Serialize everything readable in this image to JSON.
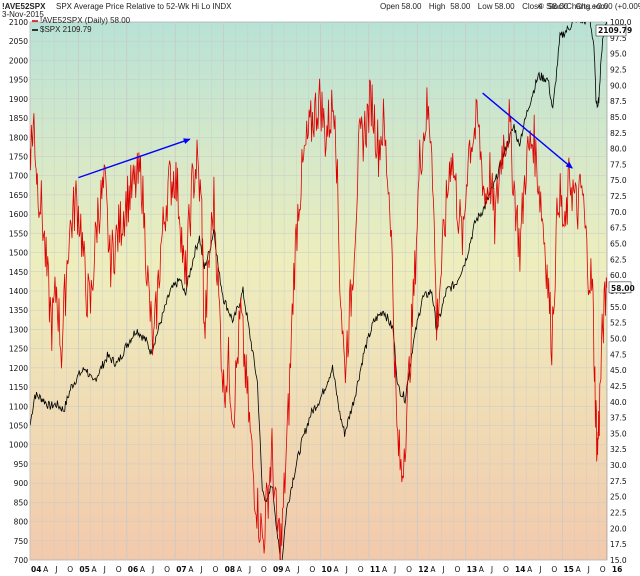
{
  "header": {
    "symbol": "!AVE52SPX",
    "description": "SPX Average Price Relative to 52-Wk Hi Lo INDX",
    "date": "3-Nov-2015",
    "ohlc": [
      {
        "label": "Open",
        "value": "58.00"
      },
      {
        "label": "High",
        "value": "58.00"
      },
      {
        "label": "Low",
        "value": "58.00"
      },
      {
        "label": "Close",
        "value": "58.00"
      },
      {
        "label": "Chg",
        "value": "+0.00 (+0.00%)"
      }
    ],
    "watermark": "© StockCharts.com"
  },
  "chart_data": {
    "type": "line",
    "legend": [
      {
        "label": "!AVE52SPX (Daily) 58.00",
        "color": "#dd0000"
      },
      {
        "label": "$SPX 2109.79",
        "color": "#000000"
      }
    ],
    "x_range": [
      2004.0,
      2015.92
    ],
    "x_ticks": [
      {
        "label": "04",
        "year": true,
        "x": 2004.0
      },
      {
        "label": "A",
        "x": 2004.25
      },
      {
        "label": "J",
        "x": 2004.5
      },
      {
        "label": "O",
        "x": 2004.75
      },
      {
        "label": "05",
        "year": true,
        "x": 2005.0
      },
      {
        "label": "A",
        "x": 2005.25
      },
      {
        "label": "J",
        "x": 2005.5
      },
      {
        "label": "O",
        "x": 2005.75
      },
      {
        "label": "06",
        "year": true,
        "x": 2006.0
      },
      {
        "label": "A",
        "x": 2006.25
      },
      {
        "label": "J",
        "x": 2006.5
      },
      {
        "label": "O",
        "x": 2006.75
      },
      {
        "label": "07",
        "year": true,
        "x": 2007.0
      },
      {
        "label": "A",
        "x": 2007.25
      },
      {
        "label": "J",
        "x": 2007.5
      },
      {
        "label": "O",
        "x": 2007.75
      },
      {
        "label": "08",
        "year": true,
        "x": 2008.0
      },
      {
        "label": "A",
        "x": 2008.25
      },
      {
        "label": "J",
        "x": 2008.5
      },
      {
        "label": "O",
        "x": 2008.75
      },
      {
        "label": "09",
        "year": true,
        "x": 2009.0
      },
      {
        "label": "A",
        "x": 2009.25
      },
      {
        "label": "J",
        "x": 2009.5
      },
      {
        "label": "O",
        "x": 2009.75
      },
      {
        "label": "10",
        "year": true,
        "x": 2010.0
      },
      {
        "label": "A",
        "x": 2010.25
      },
      {
        "label": "J",
        "x": 2010.5
      },
      {
        "label": "O",
        "x": 2010.75
      },
      {
        "label": "11",
        "year": true,
        "x": 2011.0
      },
      {
        "label": "A",
        "x": 2011.25
      },
      {
        "label": "J",
        "x": 2011.5
      },
      {
        "label": "O",
        "x": 2011.75
      },
      {
        "label": "12",
        "year": true,
        "x": 2012.0
      },
      {
        "label": "A",
        "x": 2012.25
      },
      {
        "label": "J",
        "x": 2012.5
      },
      {
        "label": "O",
        "x": 2012.75
      },
      {
        "label": "13",
        "year": true,
        "x": 2013.0
      },
      {
        "label": "A",
        "x": 2013.25
      },
      {
        "label": "J",
        "x": 2013.5
      },
      {
        "label": "O",
        "x": 2013.75
      },
      {
        "label": "14",
        "year": true,
        "x": 2014.0
      },
      {
        "label": "A",
        "x": 2014.25
      },
      {
        "label": "J",
        "x": 2014.5
      },
      {
        "label": "O",
        "x": 2014.75
      },
      {
        "label": "15",
        "year": true,
        "x": 2015.0
      },
      {
        "label": "A",
        "x": 2015.25
      },
      {
        "label": "J",
        "x": 2015.5
      },
      {
        "label": "O",
        "x": 2015.75
      },
      {
        "label": "16",
        "year": true,
        "x": 2016.0
      }
    ],
    "left_axis": {
      "series": "$SPX",
      "min": 700,
      "max": 2100,
      "ticks": [
        700,
        750,
        800,
        850,
        900,
        950,
        1000,
        1050,
        1100,
        1150,
        1200,
        1250,
        1300,
        1350,
        1400,
        1450,
        1500,
        1550,
        1600,
        1650,
        1700,
        1750,
        1800,
        1850,
        1900,
        1950,
        2000,
        2050,
        2100
      ]
    },
    "right_axis": {
      "series": "!AVE52SPX",
      "min": 15,
      "max": 100,
      "ticks": [
        "100.0",
        "97.5",
        "95.0",
        "92.5",
        "90.0",
        "87.5",
        "85.0",
        "82.5",
        "80.0",
        "77.5",
        "75.0",
        "72.5",
        "70.0",
        "67.5",
        "65.0",
        "62.5",
        "60.0",
        "57.5",
        "55.0",
        "52.5",
        "50.0",
        "47.5",
        "45.0",
        "42.5",
        "40.0",
        "37.5",
        "35.0",
        "32.5",
        "30.0",
        "27.5",
        "25.0",
        "22.5",
        "20.0",
        "17.5",
        "15.0"
      ],
      "last_value_label": "58.00"
    },
    "left_last_value_label": "2109.79",
    "series": [
      {
        "name": "$SPX",
        "color": "#000000",
        "axis": "left",
        "points": [
          [
            2004.0,
            1050
          ],
          [
            2004.1,
            1130
          ],
          [
            2004.25,
            1120
          ],
          [
            2004.4,
            1100
          ],
          [
            2004.55,
            1105
          ],
          [
            2004.7,
            1090
          ],
          [
            2004.85,
            1150
          ],
          [
            2005.0,
            1180
          ],
          [
            2005.15,
            1200
          ],
          [
            2005.3,
            1160
          ],
          [
            2005.45,
            1195
          ],
          [
            2005.6,
            1230
          ],
          [
            2005.8,
            1210
          ],
          [
            2006.0,
            1260
          ],
          [
            2006.2,
            1300
          ],
          [
            2006.4,
            1270
          ],
          [
            2006.5,
            1240
          ],
          [
            2006.7,
            1320
          ],
          [
            2006.9,
            1400
          ],
          [
            2007.1,
            1430
          ],
          [
            2007.2,
            1390
          ],
          [
            2007.4,
            1500
          ],
          [
            2007.5,
            1540
          ],
          [
            2007.6,
            1460
          ],
          [
            2007.7,
            1500
          ],
          [
            2007.8,
            1560
          ],
          [
            2007.9,
            1450
          ],
          [
            2008.0,
            1380
          ],
          [
            2008.2,
            1320
          ],
          [
            2008.4,
            1400
          ],
          [
            2008.55,
            1280
          ],
          [
            2008.7,
            1160
          ],
          [
            2008.8,
            880
          ],
          [
            2008.9,
            850
          ],
          [
            2009.0,
            900
          ],
          [
            2009.15,
            720
          ],
          [
            2009.2,
            690
          ],
          [
            2009.3,
            830
          ],
          [
            2009.45,
            920
          ],
          [
            2009.6,
            1000
          ],
          [
            2009.8,
            1080
          ],
          [
            2010.0,
            1120
          ],
          [
            2010.25,
            1200
          ],
          [
            2010.4,
            1080
          ],
          [
            2010.5,
            1030
          ],
          [
            2010.7,
            1120
          ],
          [
            2010.9,
            1240
          ],
          [
            2011.1,
            1320
          ],
          [
            2011.3,
            1350
          ],
          [
            2011.5,
            1300
          ],
          [
            2011.6,
            1150
          ],
          [
            2011.75,
            1120
          ],
          [
            2011.9,
            1250
          ],
          [
            2012.1,
            1380
          ],
          [
            2012.3,
            1400
          ],
          [
            2012.4,
            1300
          ],
          [
            2012.6,
            1400
          ],
          [
            2012.8,
            1420
          ],
          [
            2013.0,
            1480
          ],
          [
            2013.2,
            1580
          ],
          [
            2013.4,
            1620
          ],
          [
            2013.6,
            1680
          ],
          [
            2013.8,
            1760
          ],
          [
            2014.0,
            1830
          ],
          [
            2014.1,
            1780
          ],
          [
            2014.3,
            1880
          ],
          [
            2014.5,
            1960
          ],
          [
            2014.7,
            1950
          ],
          [
            2014.8,
            1870
          ],
          [
            2014.95,
            2060
          ],
          [
            2015.1,
            2080
          ],
          [
            2015.3,
            2110
          ],
          [
            2015.45,
            2100
          ],
          [
            2015.55,
            2120
          ],
          [
            2015.65,
            2040
          ],
          [
            2015.7,
            1880
          ],
          [
            2015.75,
            1900
          ],
          [
            2015.83,
            2060
          ],
          [
            2015.92,
            2109.79
          ]
        ]
      },
      {
        "name": "!AVE52SPX",
        "color": "#dd0000",
        "axis": "right",
        "points": [
          [
            2004.0,
            80
          ],
          [
            2004.08,
            84
          ],
          [
            2004.15,
            75
          ],
          [
            2004.25,
            70
          ],
          [
            2004.35,
            60
          ],
          [
            2004.45,
            52
          ],
          [
            2004.55,
            58
          ],
          [
            2004.65,
            48
          ],
          [
            2004.8,
            66
          ],
          [
            2004.95,
            72
          ],
          [
            2005.05,
            68
          ],
          [
            2005.15,
            58
          ],
          [
            2005.25,
            55
          ],
          [
            2005.4,
            70
          ],
          [
            2005.55,
            74
          ],
          [
            2005.65,
            62
          ],
          [
            2005.8,
            66
          ],
          [
            2006.0,
            72
          ],
          [
            2006.15,
            74
          ],
          [
            2006.3,
            76
          ],
          [
            2006.45,
            57
          ],
          [
            2006.55,
            48
          ],
          [
            2006.7,
            64
          ],
          [
            2006.85,
            74
          ],
          [
            2007.0,
            76
          ],
          [
            2007.1,
            70
          ],
          [
            2007.2,
            58
          ],
          [
            2007.35,
            74
          ],
          [
            2007.45,
            78
          ],
          [
            2007.55,
            70
          ],
          [
            2007.6,
            50
          ],
          [
            2007.7,
            62
          ],
          [
            2007.8,
            72
          ],
          [
            2007.9,
            56
          ],
          [
            2008.0,
            42
          ],
          [
            2008.1,
            46
          ],
          [
            2008.2,
            38
          ],
          [
            2008.35,
            54
          ],
          [
            2008.5,
            40
          ],
          [
            2008.62,
            28
          ],
          [
            2008.72,
            22
          ],
          [
            2008.82,
            18
          ],
          [
            2008.92,
            26
          ],
          [
            2009.0,
            32
          ],
          [
            2009.1,
            20
          ],
          [
            2009.2,
            18
          ],
          [
            2009.35,
            40
          ],
          [
            2009.45,
            60
          ],
          [
            2009.55,
            72
          ],
          [
            2009.7,
            80
          ],
          [
            2009.85,
            85
          ],
          [
            2010.0,
            88
          ],
          [
            2010.1,
            82
          ],
          [
            2010.3,
            88
          ],
          [
            2010.4,
            60
          ],
          [
            2010.5,
            45
          ],
          [
            2010.65,
            58
          ],
          [
            2010.8,
            80
          ],
          [
            2010.95,
            84
          ],
          [
            2011.05,
            88
          ],
          [
            2011.2,
            80
          ],
          [
            2011.3,
            84
          ],
          [
            2011.45,
            70
          ],
          [
            2011.58,
            35
          ],
          [
            2011.68,
            28
          ],
          [
            2011.8,
            40
          ],
          [
            2011.95,
            60
          ],
          [
            2012.05,
            78
          ],
          [
            2012.2,
            86
          ],
          [
            2012.3,
            82
          ],
          [
            2012.4,
            52
          ],
          [
            2012.55,
            66
          ],
          [
            2012.7,
            80
          ],
          [
            2012.85,
            70
          ],
          [
            2012.95,
            65
          ],
          [
            2013.05,
            80
          ],
          [
            2013.25,
            84
          ],
          [
            2013.4,
            72
          ],
          [
            2013.5,
            76
          ],
          [
            2013.6,
            68
          ],
          [
            2013.75,
            80
          ],
          [
            2013.9,
            84
          ],
          [
            2014.0,
            74
          ],
          [
            2014.12,
            64
          ],
          [
            2014.25,
            78
          ],
          [
            2014.4,
            82
          ],
          [
            2014.55,
            72
          ],
          [
            2014.65,
            64
          ],
          [
            2014.78,
            50
          ],
          [
            2014.92,
            74
          ],
          [
            2015.05,
            66
          ],
          [
            2015.15,
            76
          ],
          [
            2015.3,
            70
          ],
          [
            2015.4,
            74
          ],
          [
            2015.52,
            62
          ],
          [
            2015.62,
            58
          ],
          [
            2015.68,
            40
          ],
          [
            2015.72,
            32
          ],
          [
            2015.76,
            38
          ],
          [
            2015.83,
            52
          ],
          [
            2015.92,
            58
          ]
        ]
      }
    ],
    "annotations": [
      {
        "type": "arrow",
        "color": "#0000ff",
        "from": [
          2005.0,
          1695
        ],
        "to": [
          2007.3,
          1795
        ]
      },
      {
        "type": "arrow",
        "color": "#0000ff",
        "from": [
          2013.35,
          1915
        ],
        "to": [
          2015.2,
          1720
        ]
      }
    ]
  }
}
